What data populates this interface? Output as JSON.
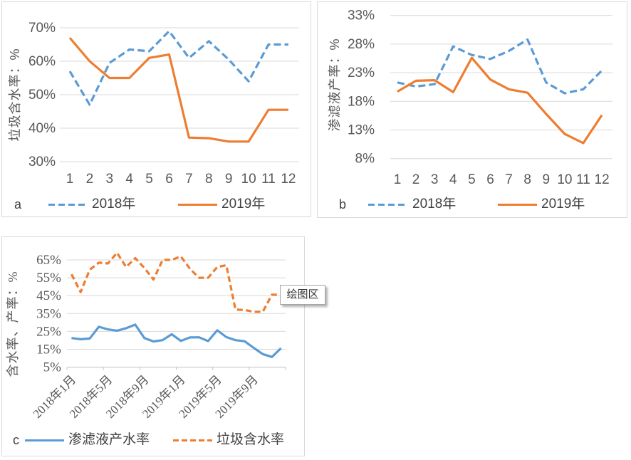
{
  "colors": {
    "series_blue": "#5B9BD5",
    "series_orange": "#ED7D31",
    "gridline": "#D9D9D9",
    "axis_text": "#595959",
    "legend_text": "#404040",
    "panel_border": "#D9D9D9"
  },
  "chart_data": [
    {
      "id": "a",
      "panel_label": "a",
      "type": "line",
      "ylabel": "垃圾含水率：%",
      "ylim": [
        30,
        70
      ],
      "ytick_step": 10,
      "ytick_labels": [
        "30%",
        "40%",
        "50%",
        "60%",
        "70%"
      ],
      "categories": [
        "1",
        "2",
        "3",
        "4",
        "5",
        "6",
        "7",
        "8",
        "9",
        "10",
        "11",
        "12"
      ],
      "grid": true,
      "legend_position": "bottom",
      "series": [
        {
          "name": "2018年",
          "color": "#5B9BD5",
          "line_style": "dashed",
          "values": [
            57,
            47,
            59.5,
            63.5,
            63,
            69,
            61,
            66,
            60.5,
            54,
            65,
            65
          ]
        },
        {
          "name": "2019年",
          "color": "#ED7D31",
          "line_style": "solid",
          "values": [
            67,
            60,
            55,
            55,
            61,
            62,
            37.2,
            37,
            36,
            36,
            45.5,
            45.5
          ]
        }
      ]
    },
    {
      "id": "b",
      "panel_label": "b",
      "type": "line",
      "ylabel": "渗滤液产率：%",
      "ylim": [
        8,
        33
      ],
      "ytick_step": 5,
      "ytick_labels": [
        "8%",
        "13%",
        "18%",
        "23%",
        "28%",
        "33%"
      ],
      "categories": [
        "1",
        "2",
        "3",
        "4",
        "5",
        "6",
        "7",
        "8",
        "9",
        "10",
        "11",
        "12"
      ],
      "grid": true,
      "legend_position": "bottom",
      "series": [
        {
          "name": "2018年",
          "color": "#5B9BD5",
          "line_style": "dashed",
          "values": [
            21.3,
            20.6,
            21,
            27.6,
            26.1,
            25.4,
            26.8,
            28.8,
            21.3,
            19.4,
            20.1,
            23.4
          ]
        },
        {
          "name": "2019年",
          "color": "#ED7D31",
          "line_style": "solid",
          "values": [
            19.7,
            21.6,
            21.7,
            19.6,
            25.6,
            21.8,
            20.1,
            19.5,
            15.8,
            12.3,
            10.7,
            15.6
          ]
        }
      ]
    },
    {
      "id": "c",
      "panel_label": "c",
      "type": "line",
      "ylabel": "含水率、产率：%",
      "ylim": [
        5,
        65
      ],
      "ytick_step": 10,
      "ytick_labels": [
        "5%",
        "15%",
        "25%",
        "35%",
        "45%",
        "55%",
        "65%"
      ],
      "n_points": 24,
      "xtick_labels": [
        "2018年1月",
        "2018年5月",
        "2018年9月",
        "2019年1月",
        "2019年5月",
        "2019年9月"
      ],
      "xtick_positions": [
        1,
        5,
        9,
        13,
        17,
        21
      ],
      "grid": true,
      "legend_position": "bottom",
      "annotation": {
        "label": "绘图区"
      },
      "series": [
        {
          "name": "渗滤液产水率",
          "color": "#5B9BD5",
          "line_style": "solid",
          "values": [
            21.3,
            20.6,
            21,
            27.6,
            26.1,
            25.4,
            26.8,
            28.8,
            21.3,
            19.4,
            20.1,
            23.4,
            19.7,
            21.6,
            21.7,
            19.6,
            25.6,
            21.8,
            20.1,
            19.5,
            15.8,
            12.3,
            10.7,
            15.6
          ]
        },
        {
          "name": "垃圾含水率",
          "color": "#ED7D31",
          "line_style": "dashed",
          "values": [
            57,
            47,
            59.5,
            63.5,
            63,
            69,
            61,
            66,
            60.5,
            54,
            65,
            65,
            67,
            60,
            55,
            55,
            61,
            62,
            37.2,
            37,
            36,
            36,
            45.5,
            45.5
          ]
        }
      ]
    }
  ]
}
